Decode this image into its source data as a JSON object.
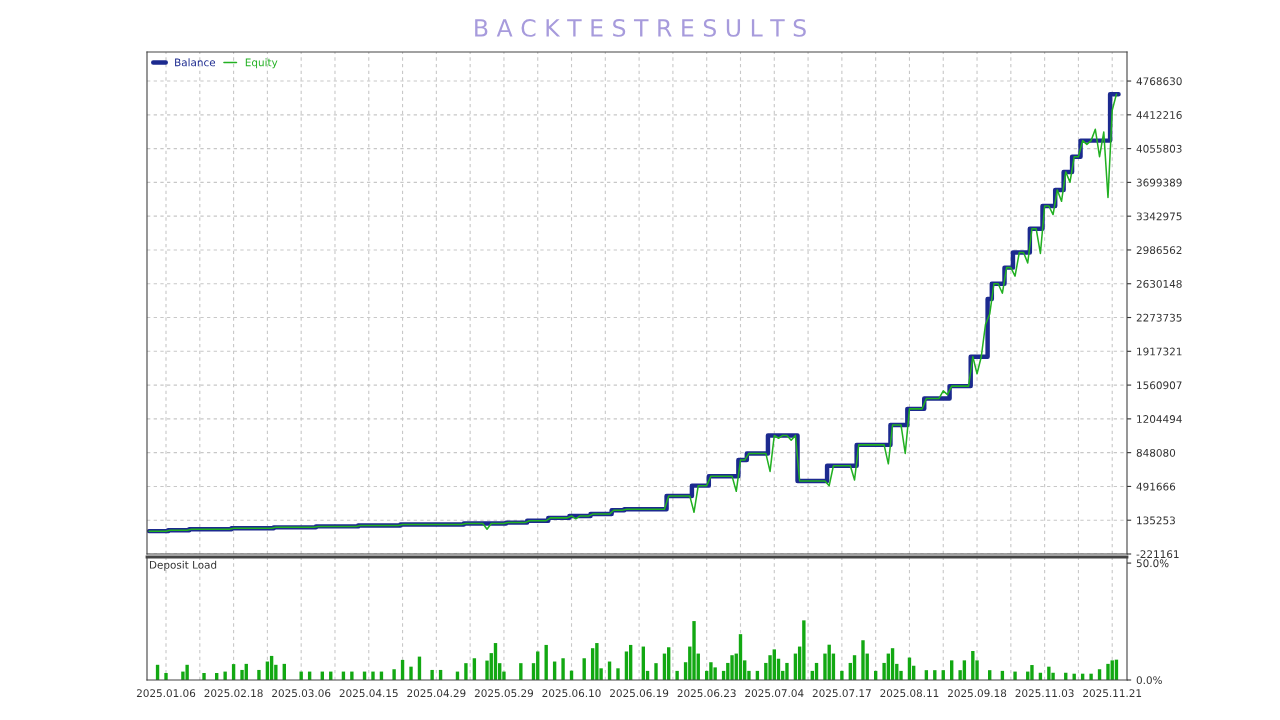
{
  "chart_data": [
    {
      "type": "line",
      "title": "B A C K T E S T R E S U L T S",
      "legend": "top left",
      "grid": true,
      "tick_labels": "y",
      "line_style": "solid",
      "marker": "none",
      "categories": [
        null,
        null,
        null,
        null,
        "2025.01.06",
        null,
        null,
        null,
        null,
        null,
        null,
        null,
        null,
        null,
        null,
        null,
        null,
        null,
        null,
        null,
        "2025.02.18",
        null,
        null,
        null,
        null,
        null,
        null,
        null,
        null,
        null,
        null,
        null,
        null,
        null,
        null,
        null,
        "2025.03.06",
        null,
        null,
        null,
        null,
        null,
        null,
        null,
        null,
        null,
        null,
        null,
        null,
        null,
        null,
        null,
        "2025.04.15",
        null,
        null,
        null,
        null,
        null,
        null,
        null,
        null,
        null,
        null,
        null,
        null,
        null,
        null,
        null,
        "2025.04.29",
        null,
        null,
        null,
        null,
        null,
        null,
        null,
        null,
        null,
        null,
        null,
        null,
        null,
        null,
        null,
        "2025.05.29",
        null,
        null,
        null,
        null,
        null,
        null,
        null,
        null,
        null,
        null,
        null,
        null,
        null,
        null,
        null,
        "2025.06.10",
        null,
        null,
        null,
        null,
        null,
        null,
        null,
        null,
        null,
        null,
        null,
        null,
        null,
        null,
        null,
        "2025.06.19",
        null,
        null,
        null,
        null,
        null,
        null,
        null,
        null,
        null,
        null,
        null,
        null,
        null,
        null,
        null,
        "2025.06.23",
        null,
        null,
        null,
        null,
        null,
        null,
        null,
        null,
        null,
        null,
        null,
        null,
        null,
        null,
        null,
        "2025.07.04",
        null,
        null,
        null,
        null,
        null,
        null,
        null,
        null,
        null,
        null,
        null,
        null,
        null,
        null,
        null,
        "2025.07.17",
        null,
        null,
        null,
        null,
        null,
        null,
        null,
        null,
        null,
        null,
        null,
        null,
        null,
        null,
        null,
        "2025.08.11",
        null,
        null,
        null,
        null,
        null,
        null,
        null,
        null,
        null,
        null,
        null,
        null,
        null,
        null,
        null,
        "2025.09.18",
        null,
        null,
        null,
        null,
        null,
        null,
        null,
        null,
        null,
        null,
        null,
        null,
        null,
        null,
        null,
        "2025.11.03",
        null,
        null,
        null,
        null,
        null,
        null,
        null,
        null,
        null,
        null,
        null,
        null,
        null,
        null,
        null,
        "2025.11.21",
        null,
        null,
        null
      ],
      "ylim": [
        -221161,
        5075000
      ],
      "yticks": [
        -221161,
        135253,
        491666,
        848080,
        1204494,
        1560907,
        1917321,
        2273735,
        2630148,
        2986562,
        3342975,
        3699389,
        4055803,
        4412216,
        4768630
      ],
      "series": [
        {
          "name": "Equity",
          "color": "#22b022",
          "values": [
            20000,
            20000,
            20000,
            20000,
            20000,
            30000,
            30000,
            30000,
            30000,
            30000,
            40000,
            40000,
            40000,
            40000,
            40000,
            40000,
            40000,
            40000,
            40000,
            40000,
            50000,
            50000,
            50000,
            50000,
            50000,
            50000,
            50000,
            50000,
            50000,
            50000,
            60000,
            60000,
            60000,
            60000,
            60000,
            60000,
            60000,
            60000,
            60000,
            60000,
            70000,
            70000,
            70000,
            70000,
            70000,
            70000,
            70000,
            70000,
            70000,
            70000,
            80000,
            80000,
            80000,
            80000,
            80000,
            80000,
            80000,
            80000,
            80000,
            80000,
            90000,
            90000,
            90000,
            90000,
            90000,
            90000,
            90000,
            90000,
            90000,
            90000,
            90000,
            90000,
            90000,
            90000,
            90000,
            100000,
            100000,
            100000,
            100000,
            100000,
            40000,
            100000,
            100000,
            100000,
            100000,
            110000,
            110000,
            110000,
            110000,
            110000,
            130000,
            130000,
            130000,
            130000,
            130000,
            160000,
            160000,
            160000,
            160000,
            160000,
            180000,
            150000,
            180000,
            180000,
            180000,
            200000,
            200000,
            200000,
            200000,
            200000,
            240000,
            240000,
            240000,
            250000,
            250000,
            250000,
            250000,
            250000,
            250000,
            250000,
            250000,
            250000,
            250000,
            390000,
            390000,
            390000,
            390000,
            390000,
            390000,
            220000,
            500000,
            500000,
            500000,
            600000,
            600000,
            600000,
            600000,
            600000,
            600000,
            440000,
            770000,
            770000,
            840000,
            840000,
            840000,
            840000,
            840000,
            650000,
            1030000,
            1000000,
            1030000,
            1030000,
            980000,
            1030000,
            550000,
            550000,
            550000,
            550000,
            550000,
            550000,
            550000,
            500000,
            710000,
            710000,
            710000,
            710000,
            710000,
            560000,
            930000,
            930000,
            930000,
            930000,
            930000,
            930000,
            930000,
            730000,
            1140000,
            1140000,
            1140000,
            840000,
            1310000,
            1310000,
            1310000,
            1310000,
            1420000,
            1420000,
            1420000,
            1420000,
            1500000,
            1460000,
            1550000,
            1550000,
            1550000,
            1550000,
            1550000,
            1860000,
            1680000,
            1860000,
            2200000,
            2310000,
            2630000,
            2630000,
            2530000,
            2800000,
            2800000,
            2710000,
            2960000,
            2960000,
            2850000,
            3210000,
            3210000,
            2950000,
            3450000,
            3450000,
            3360000,
            3620000,
            3500000,
            3810000,
            3700000,
            3970000,
            3970000,
            4140000,
            4100000,
            4140000,
            4260000,
            3970000,
            4230000,
            3540000,
            4460000,
            4630000,
            null,
            null
          ]
        },
        {
          "name": "Balance",
          "color": "#1c2a8f",
          "type": "step",
          "values": [
            20000,
            20000,
            20000,
            20000,
            20000,
            30000,
            30000,
            30000,
            30000,
            30000,
            40000,
            40000,
            40000,
            40000,
            40000,
            40000,
            40000,
            40000,
            40000,
            40000,
            50000,
            50000,
            50000,
            50000,
            50000,
            50000,
            50000,
            50000,
            50000,
            50000,
            60000,
            60000,
            60000,
            60000,
            60000,
            60000,
            60000,
            60000,
            60000,
            60000,
            70000,
            70000,
            70000,
            70000,
            70000,
            70000,
            70000,
            70000,
            70000,
            70000,
            80000,
            80000,
            80000,
            80000,
            80000,
            80000,
            80000,
            80000,
            80000,
            80000,
            90000,
            90000,
            90000,
            90000,
            90000,
            90000,
            90000,
            90000,
            90000,
            90000,
            90000,
            90000,
            90000,
            90000,
            90000,
            100000,
            100000,
            100000,
            100000,
            100000,
            100000,
            100000,
            100000,
            100000,
            100000,
            110000,
            110000,
            110000,
            110000,
            110000,
            130000,
            130000,
            130000,
            130000,
            130000,
            160000,
            160000,
            160000,
            160000,
            160000,
            180000,
            180000,
            180000,
            180000,
            180000,
            200000,
            200000,
            200000,
            200000,
            200000,
            240000,
            240000,
            240000,
            250000,
            250000,
            250000,
            250000,
            250000,
            250000,
            250000,
            250000,
            250000,
            250000,
            390000,
            390000,
            390000,
            390000,
            390000,
            390000,
            500000,
            500000,
            500000,
            500000,
            600000,
            600000,
            600000,
            600000,
            600000,
            600000,
            600000,
            770000,
            770000,
            840000,
            840000,
            840000,
            840000,
            840000,
            1030000,
            1030000,
            1030000,
            1030000,
            1030000,
            1030000,
            1030000,
            550000,
            550000,
            550000,
            550000,
            550000,
            550000,
            550000,
            710000,
            710000,
            710000,
            710000,
            710000,
            710000,
            710000,
            930000,
            930000,
            930000,
            930000,
            930000,
            930000,
            930000,
            930000,
            1140000,
            1140000,
            1140000,
            1140000,
            1310000,
            1310000,
            1310000,
            1310000,
            1420000,
            1420000,
            1420000,
            1420000,
            1420000,
            1420000,
            1550000,
            1550000,
            1550000,
            1550000,
            1550000,
            1860000,
            1860000,
            1860000,
            1860000,
            2470000,
            2630000,
            2630000,
            2630000,
            2800000,
            2800000,
            2960000,
            2960000,
            2960000,
            2960000,
            3210000,
            3210000,
            3210000,
            3450000,
            3450000,
            3450000,
            3620000,
            3620000,
            3810000,
            3810000,
            3970000,
            3970000,
            4140000,
            4140000,
            4140000,
            4140000,
            4140000,
            4140000,
            4140000,
            4630000,
            4630000,
            null,
            null
          ]
        }
      ]
    },
    {
      "type": "bar",
      "title": "Deposit Load",
      "grid": "x",
      "color": "#12a812",
      "categories": [
        null,
        null,
        null,
        null,
        "2025.01.06",
        null,
        null,
        null,
        null,
        null,
        null,
        null,
        null,
        null,
        null,
        null,
        null,
        null,
        null,
        null,
        "2025.02.18",
        null,
        null,
        null,
        null,
        null,
        null,
        null,
        null,
        null,
        null,
        null,
        null,
        null,
        null,
        null,
        "2025.03.06",
        null,
        null,
        null,
        null,
        null,
        null,
        null,
        null,
        null,
        null,
        null,
        null,
        null,
        null,
        null,
        "2025.04.15",
        null,
        null,
        null,
        null,
        null,
        null,
        null,
        null,
        null,
        null,
        null,
        null,
        null,
        null,
        null,
        "2025.04.29",
        null,
        null,
        null,
        null,
        null,
        null,
        null,
        null,
        null,
        null,
        null,
        null,
        null,
        null,
        null,
        "2025.05.29",
        null,
        null,
        null,
        null,
        null,
        null,
        null,
        null,
        null,
        null,
        null,
        null,
        null,
        null,
        null,
        "2025.06.10",
        null,
        null,
        null,
        null,
        null,
        null,
        null,
        null,
        null,
        null,
        null,
        null,
        null,
        null,
        null,
        "2025.06.19",
        null,
        null,
        null,
        null,
        null,
        null,
        null,
        null,
        null,
        null,
        null,
        null,
        null,
        null,
        null,
        "2025.06.23",
        null,
        null,
        null,
        null,
        null,
        null,
        null,
        null,
        null,
        null,
        null,
        null,
        null,
        null,
        null,
        "2025.07.04",
        null,
        null,
        null,
        null,
        null,
        null,
        null,
        null,
        null,
        null,
        null,
        null,
        null,
        null,
        null,
        "2025.07.17",
        null,
        null,
        null,
        null,
        null,
        null,
        null,
        null,
        null,
        null,
        null,
        null,
        null,
        null,
        null,
        "2025.08.11",
        null,
        null,
        null,
        null,
        null,
        null,
        null,
        null,
        null,
        null,
        null,
        null,
        null,
        null,
        null,
        "2025.09.18",
        null,
        null,
        null,
        null,
        null,
        null,
        null,
        null,
        null,
        null,
        null,
        null,
        null,
        null,
        null,
        "2025.11.03",
        null,
        null,
        null,
        null,
        null,
        null,
        null,
        null,
        null,
        null,
        null,
        null,
        null,
        null,
        null,
        "2025.11.21",
        null,
        null,
        null
      ],
      "ylim": [
        0,
        52.6
      ],
      "yticks": [
        {
          "value": 0,
          "label": "0.0%"
        },
        {
          "value": 50,
          "label": "50.0%"
        }
      ],
      "values": [
        null,
        null,
        6.5,
        null,
        3,
        null,
        null,
        null,
        3.6,
        6.5,
        null,
        null,
        null,
        3,
        null,
        null,
        3,
        null,
        3.6,
        null,
        6.8,
        null,
        4.3,
        6.9,
        null,
        null,
        4.3,
        null,
        7.9,
        10.3,
        6.5,
        null,
        6.9,
        null,
        null,
        null,
        3.6,
        null,
        3.6,
        null,
        null,
        3.6,
        null,
        3.6,
        null,
        null,
        3.6,
        null,
        3.6,
        null,
        null,
        3.6,
        null,
        3.6,
        null,
        3.6,
        null,
        null,
        4.6,
        null,
        8.6,
        null,
        5.7,
        null,
        10,
        null,
        null,
        4.3,
        null,
        4.3,
        null,
        null,
        null,
        3.6,
        null,
        7.2,
        null,
        9.3,
        null,
        null,
        8.3,
        11.5,
        15.8,
        7.2,
        3.6,
        null,
        null,
        null,
        7.2,
        null,
        null,
        7.2,
        12.2,
        null,
        15,
        null,
        7.9,
        null,
        9.3,
        null,
        4,
        null,
        null,
        9.3,
        null,
        13.6,
        15.8,
        5,
        null,
        7.9,
        null,
        5,
        null,
        12.2,
        15,
        null,
        null,
        14.3,
        3.9,
        null,
        7.2,
        null,
        11.3,
        14,
        null,
        3.9,
        null,
        7.6,
        14.3,
        25.2,
        11.3,
        null,
        3.9,
        7.6,
        5.4,
        null,
        3.9,
        7.3,
        10.6,
        11.3,
        19.6,
        8.4,
        3.9,
        null,
        3.9,
        null,
        7.3,
        10.6,
        13.1,
        9.1,
        3.9,
        7.3,
        null,
        11.3,
        14.3,
        25.5,
        null,
        3.9,
        7.3,
        null,
        11.3,
        15.1,
        11.3,
        null,
        3.9,
        null,
        7.3,
        10.6,
        null,
        17,
        11.3,
        null,
        3.9,
        null,
        7.3,
        11.3,
        13.6,
        6.9,
        3.9,
        null,
        9.6,
        6.1,
        null,
        null,
        4.2,
        null,
        4.2,
        null,
        4.2,
        null,
        8.4,
        null,
        4.2,
        8.4,
        null,
        12.4,
        8.4,
        null,
        null,
        4.2,
        null,
        null,
        3.9,
        null,
        null,
        3.6,
        null,
        null,
        3.6,
        6.4,
        null,
        3.1,
        null,
        5.7,
        3.1,
        null,
        null,
        3.1,
        null,
        2.7,
        null,
        2.7,
        null,
        2.7,
        null,
        4.6,
        null,
        6.9,
        8.4,
        8.7,
        null,
        null
      ]
    }
  ]
}
